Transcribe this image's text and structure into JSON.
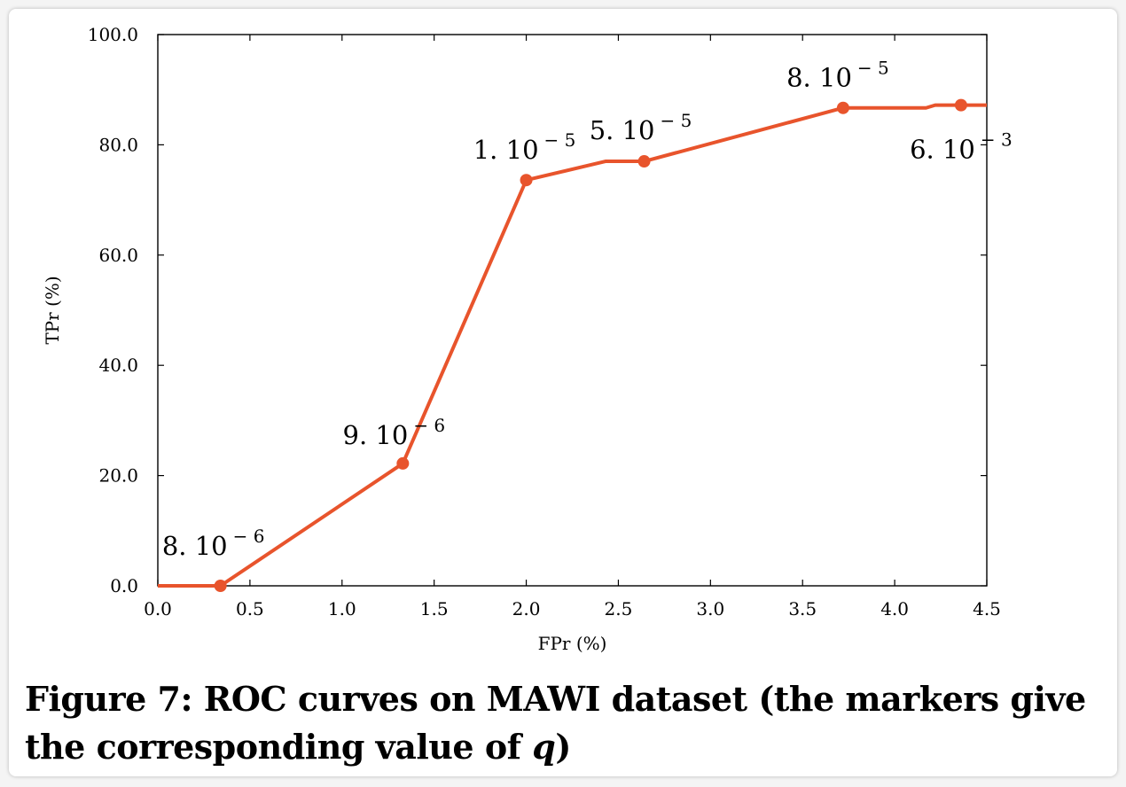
{
  "caption": {
    "label": "Figure 7:",
    "text": "ROC curves on MAWI dataset (the markers give the corresponding value of",
    "var": "q",
    "close": ")"
  },
  "chart_data": {
    "type": "line",
    "xlabel": "FPr (%)",
    "ylabel": "TPr (%)",
    "xlim": [
      0.0,
      4.5
    ],
    "ylim": [
      0.0,
      100.0
    ],
    "x_ticks": [
      0.0,
      0.5,
      1.0,
      1.5,
      2.0,
      2.5,
      3.0,
      3.5,
      4.0,
      4.5
    ],
    "x_tick_labels": [
      "0.0",
      "0.5",
      "1.0",
      "1.5",
      "2.0",
      "2.5",
      "3.0",
      "3.5",
      "4.0",
      "4.5"
    ],
    "y_ticks": [
      0,
      20,
      40,
      60,
      80,
      100
    ],
    "y_tick_labels": [
      "0.0",
      "20.0",
      "40.0",
      "60.0",
      "80.0",
      "100.0"
    ],
    "grid": false,
    "line_color": "#e8542c",
    "series": [
      {
        "x": [
          0.0,
          0.34,
          1.33,
          2.0,
          2.43,
          2.64,
          3.72,
          4.17,
          4.22,
          4.36,
          4.5
        ],
        "y": [
          0.0,
          0.0,
          22.2,
          73.6,
          77.0,
          77.0,
          86.7,
          86.7,
          87.2,
          87.2,
          87.2
        ]
      }
    ],
    "markers": [
      {
        "x": 0.34,
        "y": 0.0,
        "label_base": "8. 10",
        "label_exp": "− 6"
      },
      {
        "x": 1.33,
        "y": 22.2,
        "label_base": "9. 10",
        "label_exp": "− 6"
      },
      {
        "x": 2.0,
        "y": 73.6,
        "label_base": "1. 10",
        "label_exp": "− 5"
      },
      {
        "x": 2.64,
        "y": 77.0,
        "label_base": "5. 10",
        "label_exp": "− 5"
      },
      {
        "x": 3.72,
        "y": 86.7,
        "label_base": "8. 10",
        "label_exp": "− 5"
      },
      {
        "x": 4.36,
        "y": 87.2,
        "label_base": "6. 10",
        "label_exp": "− 3"
      }
    ]
  }
}
